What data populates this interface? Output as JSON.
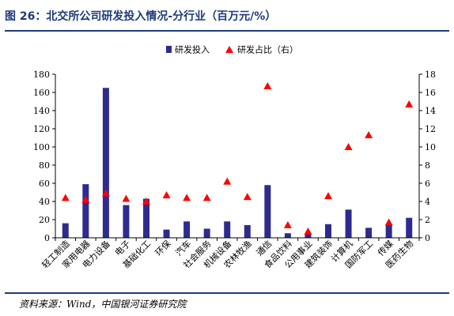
{
  "header": {
    "title": "图 26：北交所公司研发投入情况-分行业（百万元/%）"
  },
  "footer": {
    "source": "资料来源：Wind，中国银河证券研究院"
  },
  "colors": {
    "bar": "#2e2b8f",
    "marker": "#ff0000",
    "title": "#1f3a7a",
    "axis": "#000000"
  },
  "chart_data": {
    "type": "bar",
    "legend_position": "top-right",
    "categories": [
      "轻工制造",
      "家用电器",
      "电力设备",
      "电子",
      "基础化工",
      "环保",
      "汽车",
      "社会服务",
      "机械设备",
      "农林牧渔",
      "通信",
      "食品饮料",
      "公用事业",
      "建筑装饰",
      "计算机",
      "国防军工",
      "传媒",
      "医药生物"
    ],
    "series": [
      {
        "name": "研发投入",
        "type": "bar",
        "axis": "left",
        "values": [
          16,
          59,
          165,
          36,
          43,
          9,
          18,
          10,
          18,
          14,
          58,
          5,
          4,
          15,
          31,
          11,
          14,
          22
        ]
      },
      {
        "name": "研发占比（右）",
        "type": "scatter",
        "axis": "right",
        "marker": "triangle",
        "values": [
          4.4,
          4.2,
          4.9,
          4.3,
          4.0,
          4.7,
          4.4,
          4.4,
          6.2,
          4.5,
          16.7,
          1.4,
          0.7,
          4.6,
          10.0,
          11.3,
          1.7,
          14.7
        ]
      }
    ],
    "y_left": {
      "ylim": [
        0,
        180
      ],
      "ticks": [
        0,
        20,
        40,
        60,
        80,
        100,
        120,
        140,
        160,
        180
      ]
    },
    "y_right": {
      "ylim": [
        0,
        18
      ],
      "ticks": [
        0,
        2,
        4,
        6,
        8,
        10,
        12,
        14,
        16,
        18
      ]
    },
    "grid": false
  }
}
